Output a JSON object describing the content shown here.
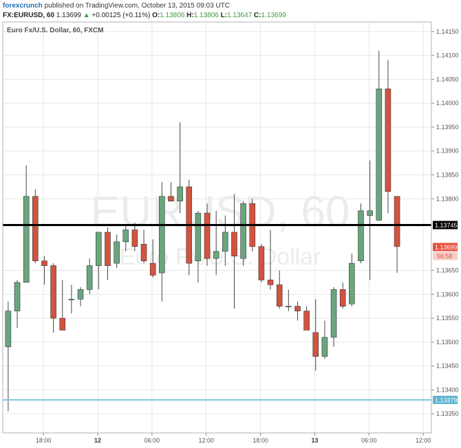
{
  "header": {
    "publisher": "forexcrunch",
    "published_text": "published on TradingView.com, October 13, 2015 09:03 UTC",
    "symbol": "FX:EURUSD, 60",
    "last_price": "1.13699",
    "change_arrow": "▲",
    "change": "+0.00125 (+0.11%)",
    "open_label": "O:",
    "open": "1.13806",
    "high_label": "H:",
    "high": "1.13806",
    "low_label": "L:",
    "low": "1.13647",
    "close_label": "C:",
    "close": "1.13699"
  },
  "chart_data": {
    "type": "candlestick",
    "title": "Euro Fx/U.S. Dollar, 60, FXCM",
    "watermark_symbol": "EURUSD, 60",
    "watermark_name": "Euro Fx/U.S. Dollar",
    "y_ticks": [
      "1.14150",
      "1.14100",
      "1.14050",
      "1.14000",
      "1.13950",
      "1.13900",
      "1.13850",
      "1.13800",
      "1.13650",
      "1.13600",
      "1.13550",
      "1.13500",
      "1.13450",
      "1.13400",
      "1.13350"
    ],
    "ylim": [
      1.1331,
      1.1417
    ],
    "x_ticks": [
      {
        "label": "18:00",
        "index": 3.9
      },
      {
        "label": "12",
        "index": 9.9
      },
      {
        "label": "06:00",
        "index": 15.9
      },
      {
        "label": "12:00",
        "index": 21.9
      },
      {
        "label": "18:00",
        "index": 27.9
      },
      {
        "label": "13",
        "index": 33.9
      },
      {
        "label": "06:00",
        "index": 39.9
      },
      {
        "label": "12:00",
        "index": 45.9
      }
    ],
    "xlim": [
      -0.6,
      46.8
    ],
    "horizontal_lines": [
      {
        "value": 1.13745,
        "label": "1.13745",
        "color": "#000000",
        "label_bg": "#000000",
        "label_color": "#ffffff",
        "width": 3
      },
      {
        "value": 1.13379,
        "label": "1.13379",
        "color": "#7ec8dc",
        "label_bg": "#5fb3cf",
        "label_color": "#ffffff",
        "width": 2
      }
    ],
    "price_label": {
      "value": 1.13699,
      "label": "1.13699",
      "countdown": "56:58",
      "color": "#e8513f"
    },
    "colors": {
      "up": "#6aa57e",
      "down": "#d2533f",
      "wick": "#444444",
      "grid": "#e6e6e6"
    },
    "candles": [
      {
        "o": 1.1349,
        "h": 1.13585,
        "l": 1.13355,
        "c": 1.13565
      },
      {
        "o": 1.13565,
        "h": 1.1363,
        "l": 1.1353,
        "c": 1.13625
      },
      {
        "o": 1.13625,
        "h": 1.1387,
        "l": 1.13625,
        "c": 1.13805
      },
      {
        "o": 1.13805,
        "h": 1.1382,
        "l": 1.13665,
        "c": 1.1367
      },
      {
        "o": 1.1367,
        "h": 1.1368,
        "l": 1.1362,
        "c": 1.1366
      },
      {
        "o": 1.1366,
        "h": 1.13665,
        "l": 1.1352,
        "c": 1.1355
      },
      {
        "o": 1.1355,
        "h": 1.1363,
        "l": 1.13525,
        "c": 1.13525
      },
      {
        "o": 1.1359,
        "h": 1.1362,
        "l": 1.1356,
        "c": 1.1359
      },
      {
        "o": 1.1359,
        "h": 1.13615,
        "l": 1.13575,
        "c": 1.1361
      },
      {
        "o": 1.1361,
        "h": 1.13675,
        "l": 1.136,
        "c": 1.1366
      },
      {
        "o": 1.1366,
        "h": 1.1373,
        "l": 1.1361,
        "c": 1.1373
      },
      {
        "o": 1.1373,
        "h": 1.1374,
        "l": 1.1363,
        "c": 1.1366
      },
      {
        "o": 1.13665,
        "h": 1.13725,
        "l": 1.13655,
        "c": 1.1371
      },
      {
        "o": 1.1371,
        "h": 1.13745,
        "l": 1.1369,
        "c": 1.13735
      },
      {
        "o": 1.13735,
        "h": 1.1375,
        "l": 1.1369,
        "c": 1.137
      },
      {
        "o": 1.13705,
        "h": 1.13735,
        "l": 1.13665,
        "c": 1.1367
      },
      {
        "o": 1.13665,
        "h": 1.13715,
        "l": 1.13635,
        "c": 1.1364
      },
      {
        "o": 1.13645,
        "h": 1.13835,
        "l": 1.13585,
        "c": 1.13805
      },
      {
        "o": 1.13805,
        "h": 1.13835,
        "l": 1.13795,
        "c": 1.13795
      },
      {
        "o": 1.13795,
        "h": 1.1396,
        "l": 1.1377,
        "c": 1.13825
      },
      {
        "o": 1.13825,
        "h": 1.1384,
        "l": 1.1364,
        "c": 1.13665
      },
      {
        "o": 1.1367,
        "h": 1.13775,
        "l": 1.13625,
        "c": 1.1377
      },
      {
        "o": 1.1377,
        "h": 1.1379,
        "l": 1.1366,
        "c": 1.13675
      },
      {
        "o": 1.13675,
        "h": 1.13775,
        "l": 1.1364,
        "c": 1.1369
      },
      {
        "o": 1.1369,
        "h": 1.13765,
        "l": 1.1366,
        "c": 1.1373
      },
      {
        "o": 1.1373,
        "h": 1.1381,
        "l": 1.1357,
        "c": 1.1368
      },
      {
        "o": 1.13675,
        "h": 1.13795,
        "l": 1.1366,
        "c": 1.1379
      },
      {
        "o": 1.1379,
        "h": 1.138,
        "l": 1.1369,
        "c": 1.137
      },
      {
        "o": 1.137,
        "h": 1.13705,
        "l": 1.13625,
        "c": 1.1363
      },
      {
        "o": 1.1363,
        "h": 1.13735,
        "l": 1.1361,
        "c": 1.1362
      },
      {
        "o": 1.1362,
        "h": 1.1365,
        "l": 1.1357,
        "c": 1.13575
      },
      {
        "o": 1.13575,
        "h": 1.1361,
        "l": 1.13565,
        "c": 1.13575
      },
      {
        "o": 1.13575,
        "h": 1.13585,
        "l": 1.13545,
        "c": 1.13565
      },
      {
        "o": 1.13565,
        "h": 1.13575,
        "l": 1.13525,
        "c": 1.13525
      },
      {
        "o": 1.1352,
        "h": 1.1359,
        "l": 1.1344,
        "c": 1.1347
      },
      {
        "o": 1.1347,
        "h": 1.13545,
        "l": 1.13465,
        "c": 1.1351
      },
      {
        "o": 1.1351,
        "h": 1.13615,
        "l": 1.1349,
        "c": 1.1361
      },
      {
        "o": 1.1361,
        "h": 1.13625,
        "l": 1.1357,
        "c": 1.13575
      },
      {
        "o": 1.1358,
        "h": 1.13685,
        "l": 1.13575,
        "c": 1.13665
      },
      {
        "o": 1.1367,
        "h": 1.1379,
        "l": 1.13665,
        "c": 1.13775
      },
      {
        "o": 1.13765,
        "h": 1.1388,
        "l": 1.1363,
        "c": 1.13775
      },
      {
        "o": 1.13755,
        "h": 1.1411,
        "l": 1.13755,
        "c": 1.1403
      },
      {
        "o": 1.1403,
        "h": 1.1409,
        "l": 1.1377,
        "c": 1.13815
      },
      {
        "o": 1.13805,
        "h": 1.13805,
        "l": 1.13645,
        "c": 1.137
      }
    ]
  }
}
